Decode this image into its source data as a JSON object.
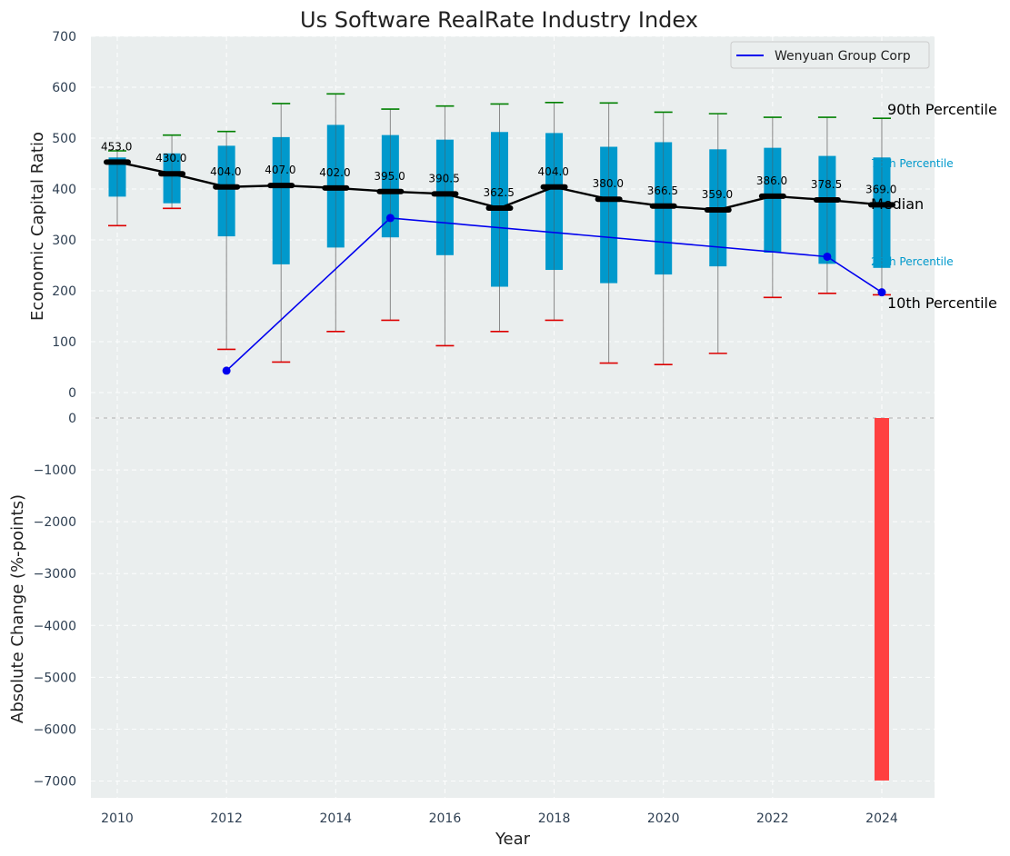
{
  "chart_data": {
    "title": "Us Software RealRate Industry Index",
    "xlabel": "Year",
    "top_panel": {
      "type": "box",
      "ylabel": "Economic Capital Ratio",
      "ylim": [
        0,
        700
      ],
      "yticks": [
        0,
        100,
        200,
        300,
        400,
        500,
        600,
        700
      ],
      "years": [
        2010,
        2011,
        2012,
        2013,
        2014,
        2015,
        2016,
        2017,
        2018,
        2019,
        2020,
        2021,
        2022,
        2023,
        2024
      ],
      "p10": [
        328,
        362,
        85,
        60,
        120,
        142,
        92,
        120,
        142,
        58,
        55,
        77,
        187,
        195,
        192
      ],
      "p25": [
        385,
        372,
        307,
        252,
        285,
        305,
        270,
        208,
        241,
        215,
        232,
        248,
        275,
        253,
        245
      ],
      "median": [
        453.0,
        430.0,
        404.0,
        407.0,
        402.0,
        395.0,
        390.5,
        362.5,
        404.0,
        380.0,
        366.5,
        359.0,
        386.0,
        378.5,
        369.0
      ],
      "median_labels": [
        "453.0",
        "430.0",
        "404.0",
        "407.0",
        "402.0",
        "395.0",
        "390.5",
        "362.5",
        "404.0",
        "380.0",
        "366.5",
        "359.0",
        "386.0",
        "378.5",
        "369.0"
      ],
      "p75": [
        462,
        470,
        485,
        502,
        526,
        506,
        497,
        512,
        510,
        483,
        492,
        478,
        481,
        465,
        462
      ],
      "p90": [
        475,
        506,
        513,
        568,
        587,
        557,
        563,
        567,
        570,
        569,
        551,
        548,
        541,
        541,
        539
      ],
      "company": {
        "name": "Wenyuan Group Corp",
        "years": [
          2012,
          2015,
          2023,
          2024
        ],
        "values": [
          43,
          343,
          267,
          197
        ]
      },
      "annotations": {
        "p90": "90th Percentile",
        "p75": "75th Percentile",
        "median": "Median",
        "p25": "25th Percentile",
        "p10": "10th Percentile"
      },
      "legend_position": "top-right"
    },
    "bottom_panel": {
      "type": "bar",
      "ylabel": "Absolute Change (%-points)",
      "ylim": [
        -7300,
        0
      ],
      "yticks": [
        0,
        -1000,
        -2000,
        -3000,
        -4000,
        -5000,
        -6000,
        -7000
      ],
      "ytick_labels": [
        "0",
        "−1000",
        "−2000",
        "−3000",
        "−4000",
        "−5000",
        "−6000",
        "−7000"
      ],
      "bars": [
        {
          "year": 2024,
          "value": -6990
        }
      ]
    },
    "xticks": [
      2010,
      2012,
      2014,
      2016,
      2018,
      2020,
      2022,
      2024
    ],
    "colors": {
      "box": "#0099cc",
      "median_line": "#000000",
      "company_line": "#0000ee",
      "p90_cap": "#008000",
      "p10_cap": "#dd0000",
      "bar": "#ff4040",
      "panel_bg": "#eaeeee"
    }
  }
}
